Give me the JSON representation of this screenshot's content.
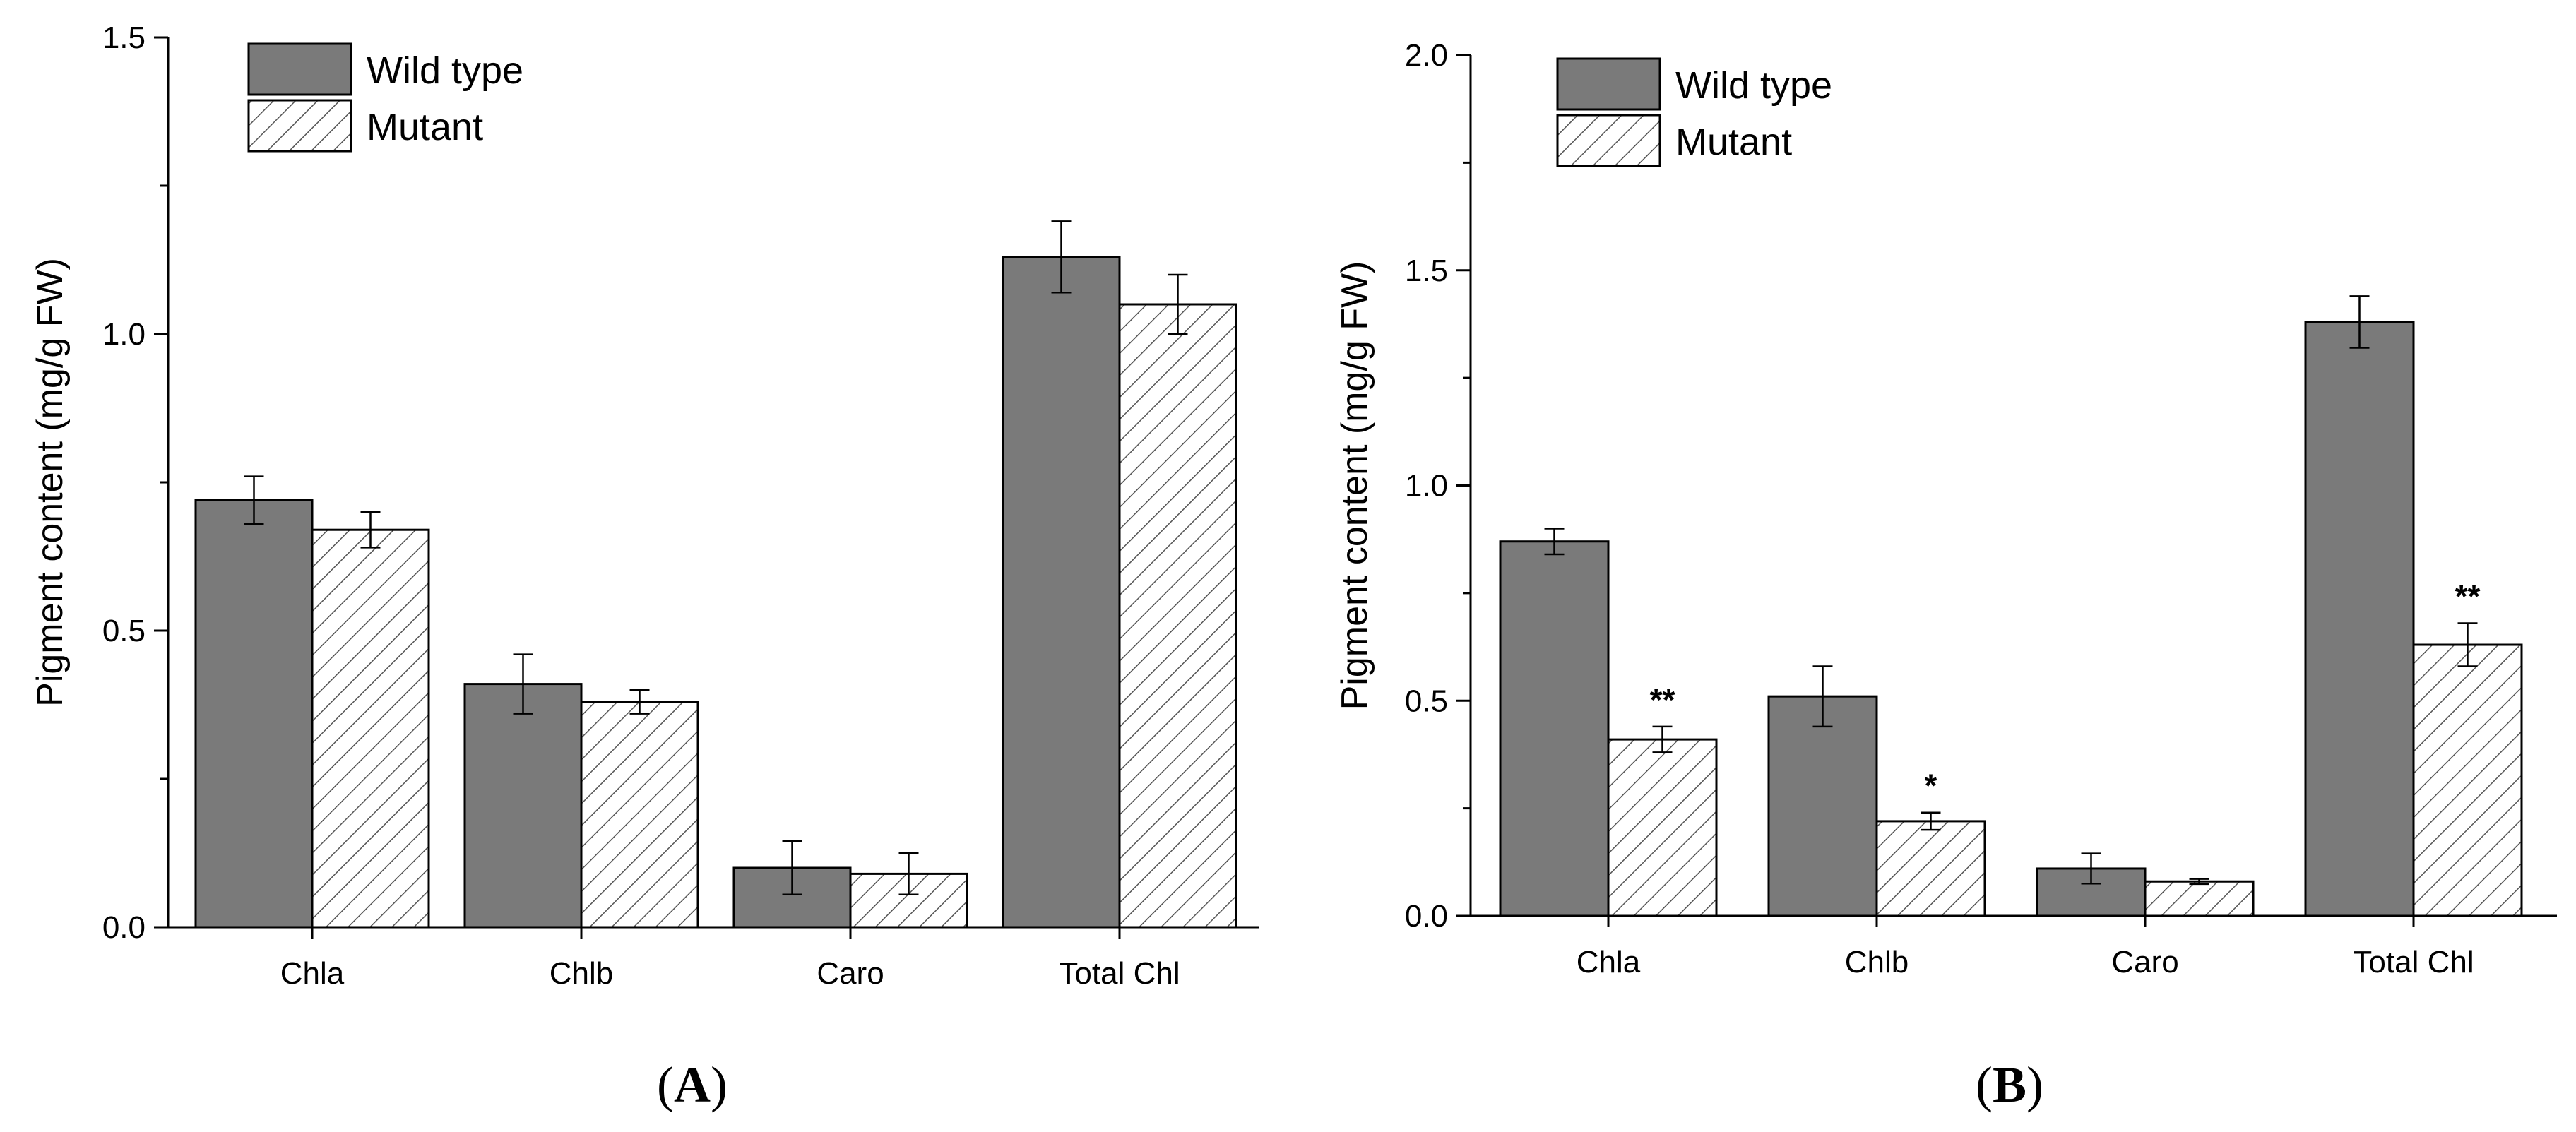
{
  "colors": {
    "wild_type": "#7a7a7a",
    "axis": "#000000",
    "hatch": "#555555"
  },
  "chart_data": [
    {
      "type": "bar",
      "panel": "A",
      "panel_label": "A",
      "title": "",
      "xlabel": "",
      "ylabel": "Pigment content (mg/g FW)",
      "categories": [
        "Chla",
        "Chlb",
        "Caro",
        "Total Chl"
      ],
      "ylim": [
        0,
        1.5
      ],
      "yticks": [
        "0.0",
        "0.5",
        "1.0",
        "1.5"
      ],
      "ytick_values": [
        0,
        0.5,
        1.0,
        1.5
      ],
      "legend": {
        "position": "top-left",
        "entries": [
          "Wild type",
          "Mutant"
        ]
      },
      "series": [
        {
          "name": "Wild type",
          "pattern": "solid",
          "values": [
            0.72,
            0.41,
            0.1,
            1.13
          ],
          "errors": [
            0.04,
            0.05,
            0.045,
            0.06
          ],
          "annotations": [
            "",
            "",
            "",
            ""
          ]
        },
        {
          "name": "Mutant",
          "pattern": "hatched",
          "values": [
            0.67,
            0.38,
            0.09,
            1.05
          ],
          "errors": [
            0.03,
            0.02,
            0.035,
            0.05
          ],
          "annotations": [
            "",
            "",
            "",
            ""
          ]
        }
      ]
    },
    {
      "type": "bar",
      "panel": "B",
      "panel_label": "B",
      "title": "",
      "xlabel": "",
      "ylabel": "Pigment content (mg/g FW)",
      "categories": [
        "Chla",
        "Chlb",
        "Caro",
        "Total Chl"
      ],
      "ylim": [
        0,
        2.0
      ],
      "yticks": [
        "0.0",
        "0.5",
        "1.0",
        "1.5",
        "2.0"
      ],
      "ytick_values": [
        0,
        0.5,
        1.0,
        1.5,
        2.0
      ],
      "legend": {
        "position": "top-left",
        "entries": [
          "Wild type",
          "Mutant"
        ]
      },
      "series": [
        {
          "name": "Wild type",
          "pattern": "solid",
          "values": [
            0.87,
            0.51,
            0.11,
            1.38
          ],
          "errors": [
            0.03,
            0.07,
            0.035,
            0.06
          ],
          "annotations": [
            "",
            "",
            "",
            ""
          ]
        },
        {
          "name": "Mutant",
          "pattern": "hatched",
          "values": [
            0.41,
            0.22,
            0.08,
            0.63
          ],
          "errors": [
            0.03,
            0.02,
            0.006,
            0.05
          ],
          "annotations": [
            "**",
            "*",
            "",
            "**"
          ]
        }
      ]
    }
  ]
}
